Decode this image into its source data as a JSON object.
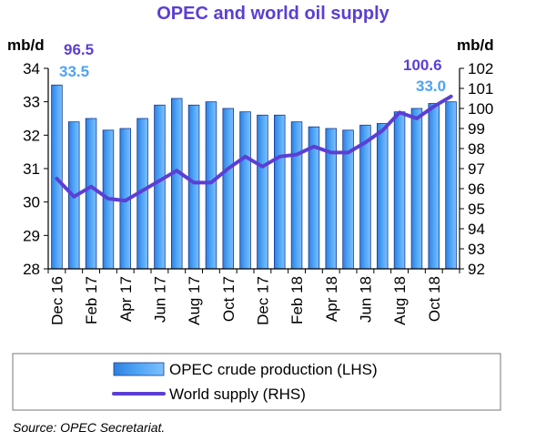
{
  "chart_data": {
    "type": "bar+line",
    "title": "OPEC and world oil supply",
    "left_unit": "mb/d",
    "right_unit": "mb/d",
    "left_ylim": [
      28,
      34
    ],
    "right_ylim": [
      92,
      102
    ],
    "left_ticks": [
      "28",
      "29",
      "30",
      "31",
      "32",
      "33",
      "34"
    ],
    "right_ticks": [
      "92",
      "93",
      "94",
      "95",
      "96",
      "97",
      "98",
      "99",
      "100",
      "101",
      "102"
    ],
    "categories": [
      "Dec 16",
      "Jan 17",
      "Feb 17",
      "Mar 17",
      "Apr 17",
      "May 17",
      "Jun 17",
      "Jul 17",
      "Aug 17",
      "Sep 17",
      "Oct 17",
      "Nov 17",
      "Dec 17",
      "Jan 18",
      "Feb 18",
      "Mar 18",
      "Apr 18",
      "May 18",
      "Jun 18",
      "Jul 18",
      "Aug 18",
      "Sep 18",
      "Oct 18",
      "Nov 18"
    ],
    "x_tick_labels": [
      "Dec 16",
      "Feb 17",
      "Apr 17",
      "Jun 17",
      "Aug 17",
      "Oct 17",
      "Dec 17",
      "Feb 18",
      "Apr 18",
      "Jun 18",
      "Aug 18",
      "Oct 18"
    ],
    "series": [
      {
        "name": "OPEC crude production (LHS)",
        "axis": "left",
        "kind": "bar",
        "color": "#4da3f5",
        "values": [
          33.5,
          32.4,
          32.5,
          32.15,
          32.2,
          32.5,
          32.9,
          33.1,
          32.9,
          33.0,
          32.8,
          32.7,
          32.6,
          32.6,
          32.4,
          32.25,
          32.2,
          32.15,
          32.3,
          32.35,
          32.7,
          32.8,
          32.95,
          33.0
        ]
      },
      {
        "name": "World supply (RHS)",
        "axis": "right",
        "kind": "line",
        "color": "#5b3fd4",
        "values": [
          96.5,
          95.6,
          96.1,
          95.5,
          95.4,
          95.9,
          96.4,
          96.9,
          96.3,
          96.3,
          97.0,
          97.6,
          97.1,
          97.6,
          97.7,
          98.1,
          97.8,
          97.8,
          98.3,
          98.9,
          99.8,
          99.5,
          100.1,
          100.6
        ]
      }
    ],
    "annotations": {
      "first_line_value": "96.5",
      "first_bar_value": "33.5",
      "last_line_value": "100.6",
      "last_bar_value": "33.0"
    },
    "legend_position": "bottom"
  },
  "source": "Source: OPEC Secretariat."
}
